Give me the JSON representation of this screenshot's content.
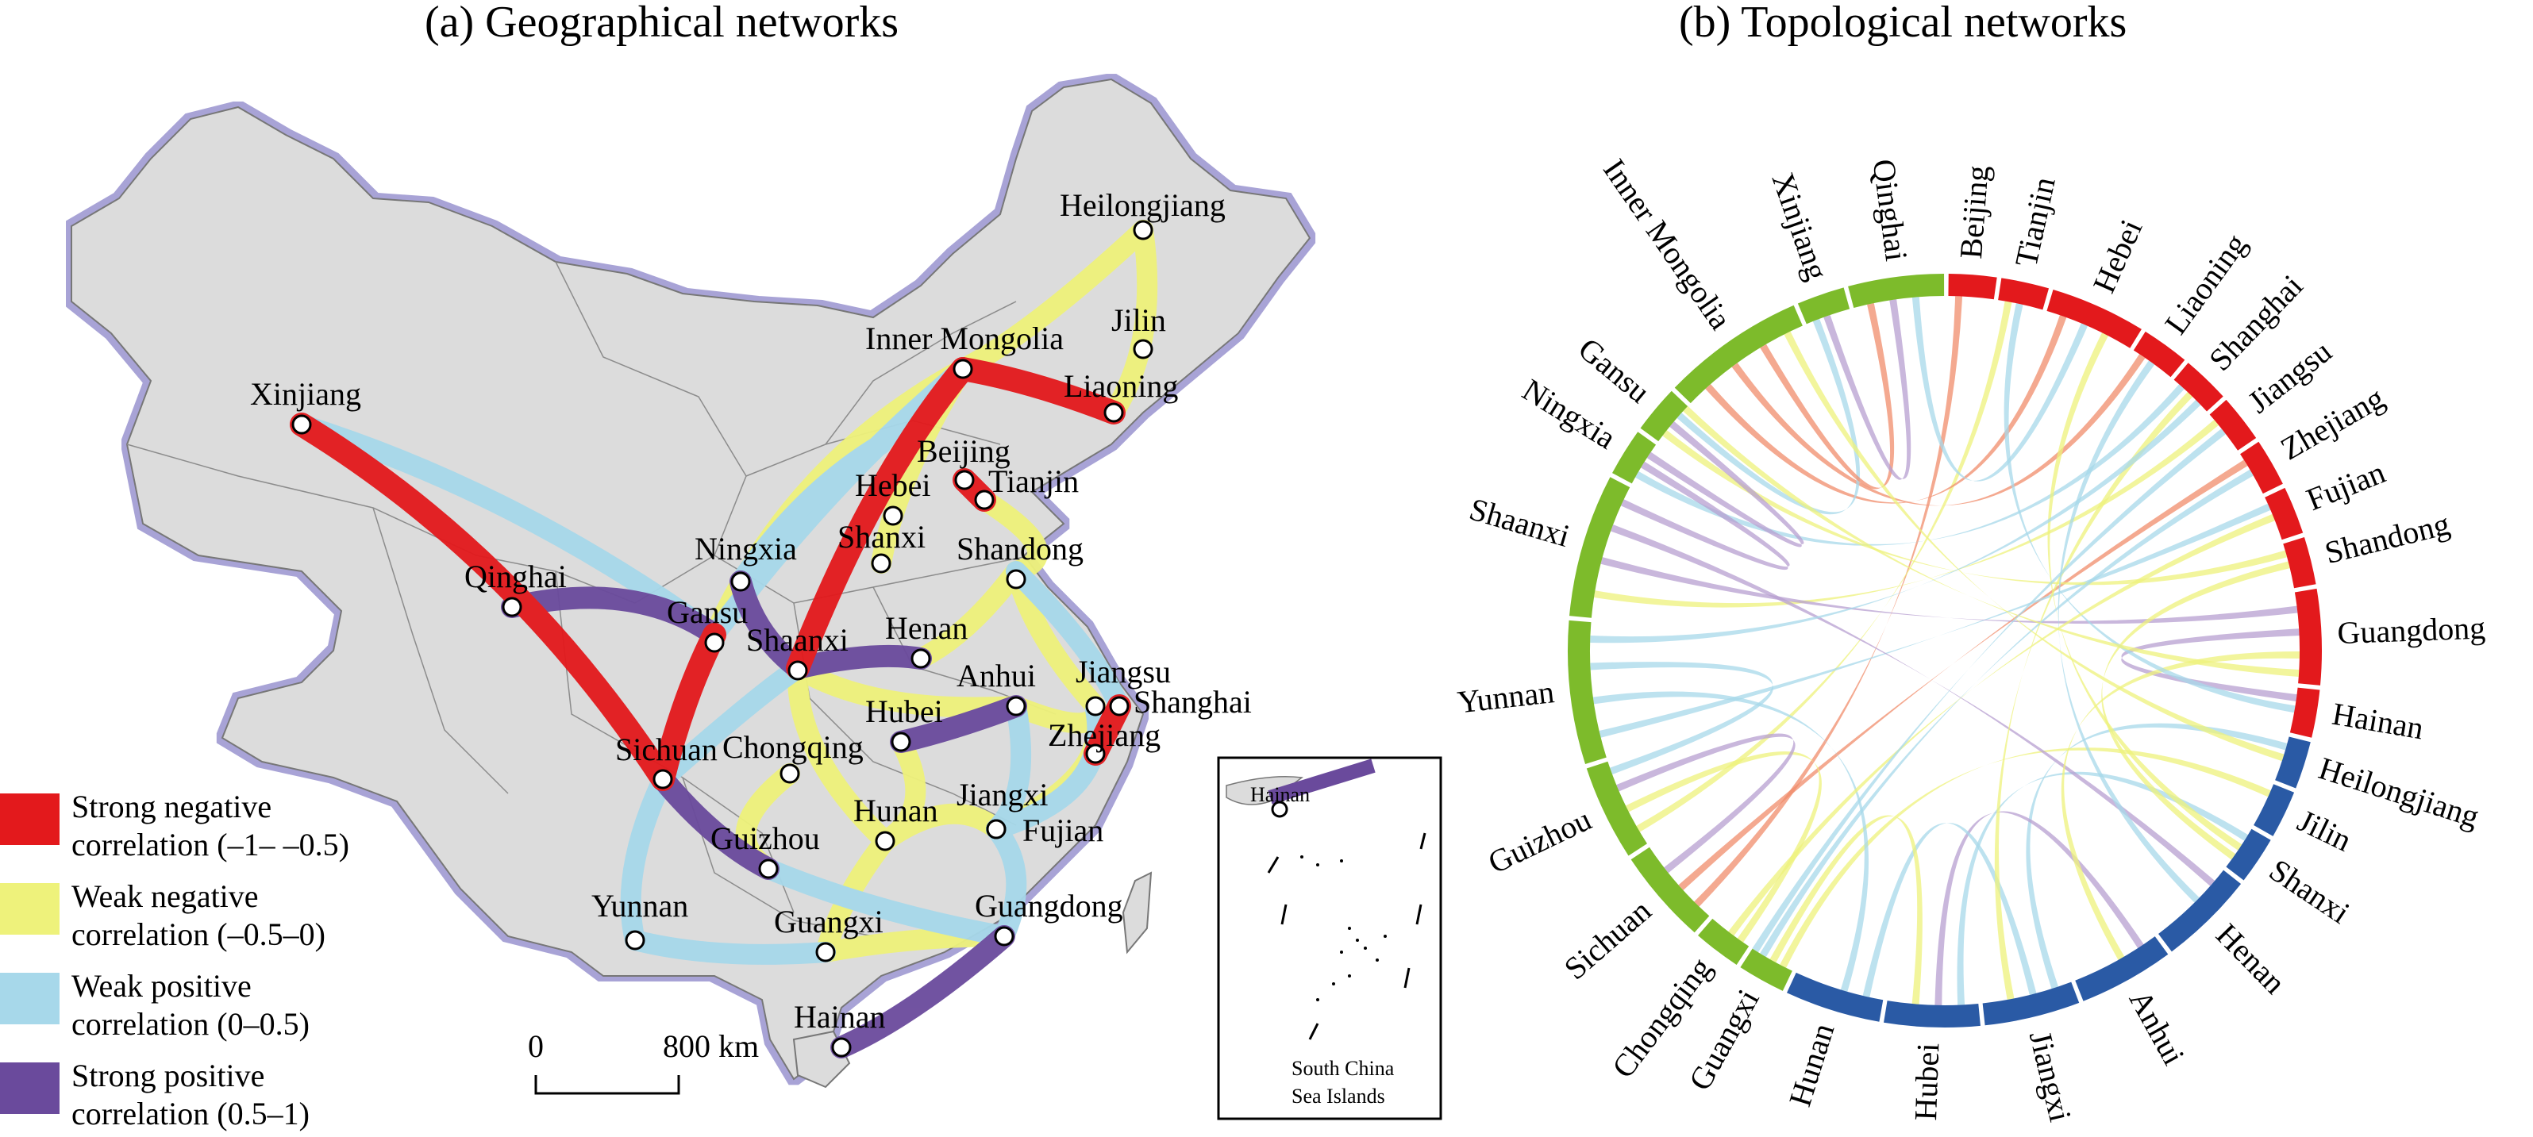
{
  "panel_a": {
    "title": "(a) Geographical networks",
    "scale": {
      "zero": "0",
      "end": "800 km"
    },
    "inset_label_1": "South China",
    "inset_label_2": "Sea Islands",
    "inset_city": "Hainan"
  },
  "panel_b": {
    "title": "(b) Topological networks"
  },
  "legend": [
    {
      "line1": "Strong negative",
      "line2": "correlation (–1– –0.5)",
      "color": "#e3191c"
    },
    {
      "line1": "Weak negative",
      "line2": "correlation (–0.5–0)",
      "color": "#eef27b"
    },
    {
      "line1": "Weak positive",
      "line2": "correlation (0–0.5)",
      "color": "#a7d8ea"
    },
    {
      "line1": "Strong positive",
      "line2": "correlation (0.5–1)",
      "color": "#6a4a9c"
    }
  ],
  "map_cities": [
    "Heilongjiang",
    "Jilin",
    "Inner Mongolia",
    "Liaoning",
    "Xinjiang",
    "Beijing",
    "Tianjin",
    "Hebei",
    "Shanxi",
    "Shandong",
    "Ningxia",
    "Qinghai",
    "Gansu",
    "Shaanxi",
    "Henan",
    "Anhui",
    "Jiangsu",
    "Shanghai",
    "Hubei",
    "Sichuan",
    "Chongqing",
    "Zhejiang",
    "Jiangxi",
    "Hunan",
    "Fujian",
    "Guizhou",
    "Yunnan",
    "Guangxi",
    "Guangdong",
    "Hainan"
  ],
  "chord_provinces": [
    "Beijing",
    "Tianjin",
    "Hebei",
    "Liaoning",
    "Shanghai",
    "Jiangsu",
    "Zhejiang",
    "Fujian",
    "Shandong",
    "Guangdong",
    "Hainan",
    "Heilongjiang",
    "Jilin",
    "Shanxi",
    "Henan",
    "Anhui",
    "Jiangxi",
    "Hubei",
    "Hunan",
    "Guangxi",
    "Chongqing",
    "Sichuan",
    "Guizhou",
    "Yunnan",
    "Shaanxi",
    "Ningxia",
    "Gansu",
    "Inner Mongolia",
    "Xinjiang",
    "Qinghai"
  ],
  "region_colors": {
    "east": "#e3191c",
    "central": "#2a5aa5",
    "west": "#7dbb2b"
  }
}
